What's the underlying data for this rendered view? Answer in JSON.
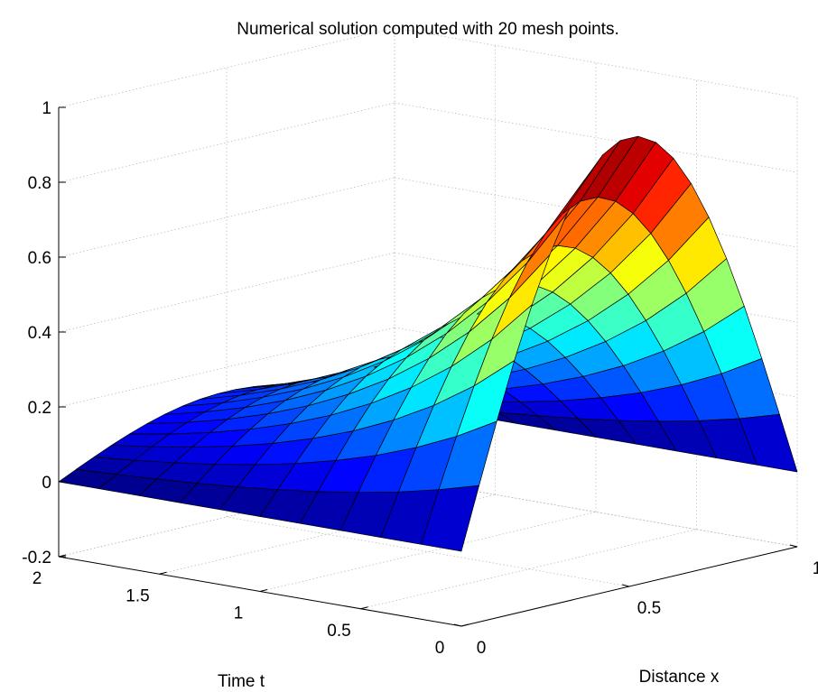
{
  "chart_data": {
    "type": "surface",
    "title": "Numerical solution computed with 20 mesh points.",
    "xlabel": "Distance x",
    "ylabel": "Time t",
    "zlabel": "",
    "xlim": [
      0,
      1
    ],
    "ylim": [
      0,
      2
    ],
    "zlim": [
      -0.2,
      1
    ],
    "x_ticks": [
      "0",
      "0.5",
      "1"
    ],
    "y_ticks": [
      "0",
      "0.5",
      "1",
      "1.5",
      "2"
    ],
    "z_ticks": [
      "-0.2",
      "0",
      "0.2",
      "0.4",
      "0.6",
      "0.8",
      "1"
    ],
    "grid": true,
    "colormap": "jet",
    "surface_function": "u(x,t) = exp(-t) * sin(pi * x)",
    "x_points": 20,
    "t_points": 11,
    "t_range": [
      0,
      2
    ],
    "x_range": [
      0,
      1
    ]
  }
}
